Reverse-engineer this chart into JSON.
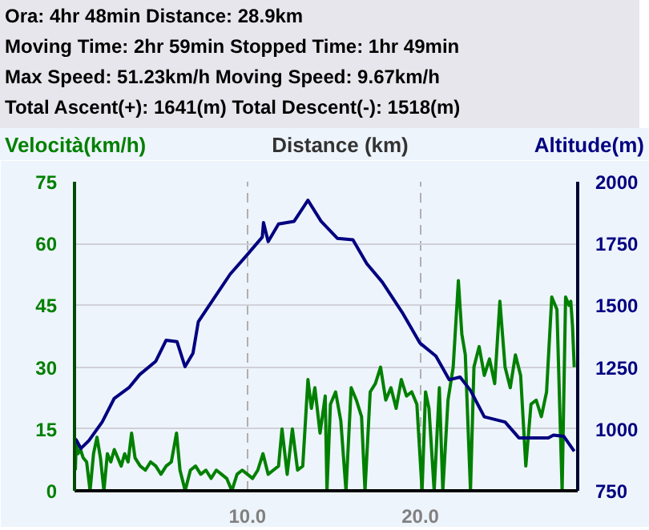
{
  "chart_data": {
    "type": "line",
    "annotations": [
      "Ora: 4hr 48min  Distance: 28.9km",
      "Moving Time: 2hr 59min  Stopped Time: 1hr 49min",
      "Max Speed: 51.23km/h  Moving Speed: 9.67km/h",
      "Total Ascent(+): 1641(m)  Total Descent(-): 1518(m)"
    ],
    "xlabel": "Distance (km)",
    "ylabel": "Velocità(km/h)",
    "y2label": "Altitude(m)",
    "xlim": [
      0,
      29.1
    ],
    "xticks": [
      {
        "value": 10,
        "label": "10.0"
      },
      {
        "value": 20,
        "label": "20.0"
      }
    ],
    "ylim": [
      0,
      75
    ],
    "yticks": [
      0,
      15,
      30,
      45,
      60,
      75
    ],
    "y2lim": [
      750,
      2000
    ],
    "y2ticks": [
      750,
      1000,
      1250,
      1500,
      1750,
      2000
    ],
    "grid": true,
    "series": [
      {
        "color": "#008000",
        "x": [
          0.05,
          0.1,
          0.2,
          0.35,
          0.5,
          0.7,
          0.9,
          1.1,
          1.3,
          1.5,
          1.7,
          1.9,
          2.1,
          2.3,
          2.5,
          2.7,
          2.9,
          3.1,
          3.3,
          3.5,
          3.8,
          4.1,
          4.4,
          4.7,
          5.0,
          5.3,
          5.6,
          5.9,
          6.1,
          6.4,
          6.7,
          7.0,
          7.3,
          7.6,
          7.9,
          8.2,
          8.5,
          8.8,
          9.1,
          9.4,
          9.7,
          10.0,
          10.3,
          10.6,
          10.9,
          11.2,
          11.5,
          11.8,
          12.0,
          12.3,
          12.6,
          12.9,
          13.2,
          13.5,
          13.7,
          13.9,
          14.2,
          14.5,
          14.6,
          14.8,
          15.1,
          15.4,
          15.7,
          16.0,
          16.3,
          16.6,
          16.8,
          17.1,
          17.4,
          17.7,
          18.0,
          18.3,
          18.6,
          18.9,
          19.2,
          19.5,
          19.8,
          20.1,
          20.3,
          20.5,
          20.8,
          21.1,
          21.3,
          21.6,
          21.9,
          22.2,
          22.4,
          22.6,
          22.9,
          23.1,
          23.4,
          23.7,
          24.0,
          24.3,
          24.6,
          24.9,
          25.2,
          25.5,
          25.8,
          26.1,
          26.4,
          26.7,
          27.0,
          27.3,
          27.6,
          27.9,
          28.2,
          28.4,
          28.6,
          28.7,
          28.8,
          28.9
        ],
        "values": [
          5,
          12,
          9,
          10,
          8,
          7,
          0,
          9,
          13,
          8,
          0,
          9,
          7,
          10,
          8,
          6,
          9,
          7,
          14,
          8,
          6,
          5,
          7,
          6,
          4,
          6,
          7,
          14,
          5,
          0,
          5,
          6,
          4,
          5,
          3,
          5,
          4,
          3,
          0,
          4,
          5,
          4,
          3,
          5,
          9,
          4,
          5,
          6,
          15,
          4,
          15,
          5,
          6,
          27,
          20,
          25,
          14,
          23,
          0,
          21,
          24,
          17,
          0,
          25,
          22,
          18,
          0,
          24,
          26,
          30,
          22,
          25,
          20,
          27,
          23,
          24,
          21,
          0,
          24,
          20,
          0,
          25,
          0,
          22,
          30,
          51,
          38,
          33,
          0,
          30,
          35,
          28,
          32,
          26,
          46,
          30,
          25,
          33,
          28,
          6,
          21,
          22,
          18,
          24,
          47,
          44,
          0,
          47,
          45,
          46,
          40,
          30
        ],
        "name": null
      },
      {
        "color": "#000080",
        "axis": "y2",
        "x": [
          0.05,
          0.12,
          0.37,
          0.83,
          1.6,
          2.3,
          3.15,
          3.77,
          4.7,
          5.3,
          5.93,
          6.39,
          6.85,
          7.16,
          8.08,
          9.0,
          9.94,
          10.86,
          10.93,
          11.2,
          11.8,
          12.7,
          13.5,
          14.26,
          15.2,
          16.1,
          16.9,
          17.8,
          19.0,
          19.97,
          20.9,
          21.67,
          22.3,
          22.9,
          23.7,
          24.9,
          25.7,
          26.45,
          27.4,
          27.7,
          28.3,
          28.9
        ],
        "values": [
          960,
          953,
          921,
          953,
          1028,
          1124,
          1167,
          1220,
          1274,
          1359,
          1353,
          1252,
          1306,
          1434,
          1530,
          1626,
          1701,
          1776,
          1835,
          1758,
          1829,
          1840,
          1925,
          1840,
          1771,
          1765,
          1669,
          1594,
          1466,
          1348,
          1295,
          1199,
          1210,
          1156,
          1049,
          1028,
          964,
          964,
          964,
          975,
          970,
          910
        ]
      }
    ]
  }
}
